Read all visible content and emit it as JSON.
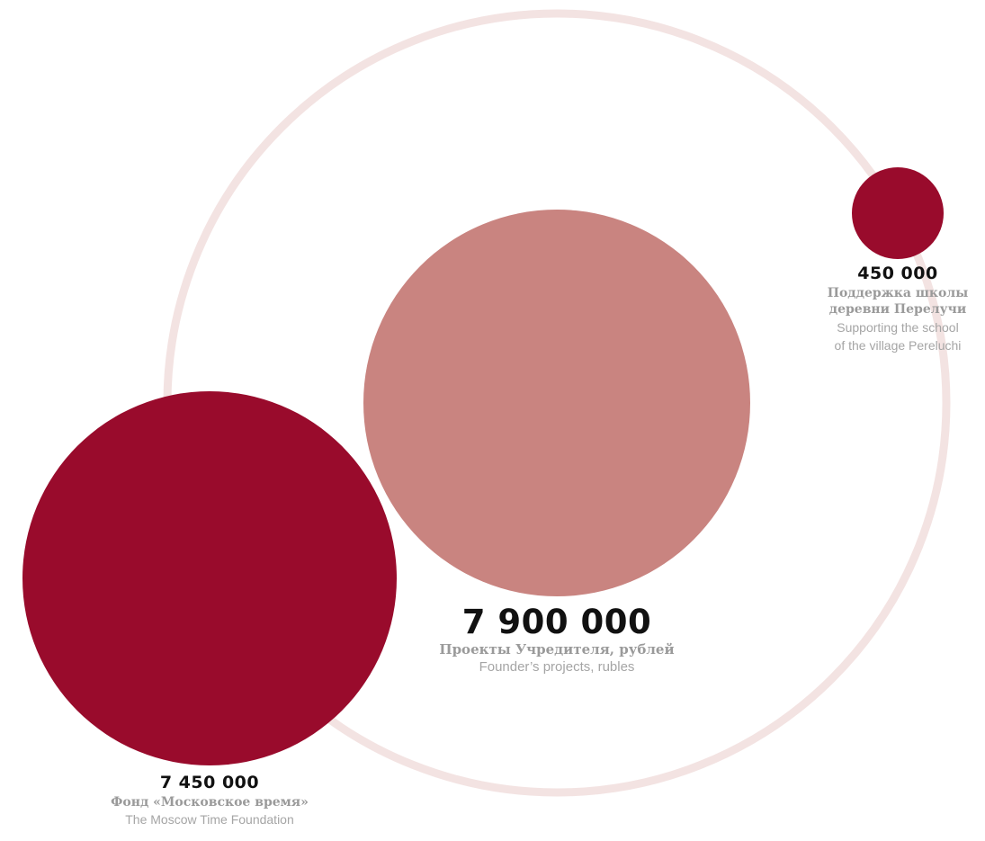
{
  "chart_data": {
    "type": "bubble",
    "title": "",
    "colors": {
      "orbit": "#f3e3e2",
      "founder_total": "#c98480",
      "component": "#990b2c"
    },
    "total": {
      "value": 7900000,
      "value_label": "7 900 000",
      "label_ru": "Проекты Учредителя, рублей",
      "label_en": "Founder’s projects, rubles"
    },
    "items": [
      {
        "value": 7450000,
        "value_label": "7 450 000",
        "label_ru": "Фонд «Московское время»",
        "label_en": "The Moscow Time Foundation"
      },
      {
        "value": 450000,
        "value_label": "450 000",
        "label_ru_lines": [
          "Поддержка школы",
          "деревни Перелучи"
        ],
        "label_en_lines": [
          "Supporting the school",
          "of the village Pereluchi"
        ]
      }
    ]
  }
}
